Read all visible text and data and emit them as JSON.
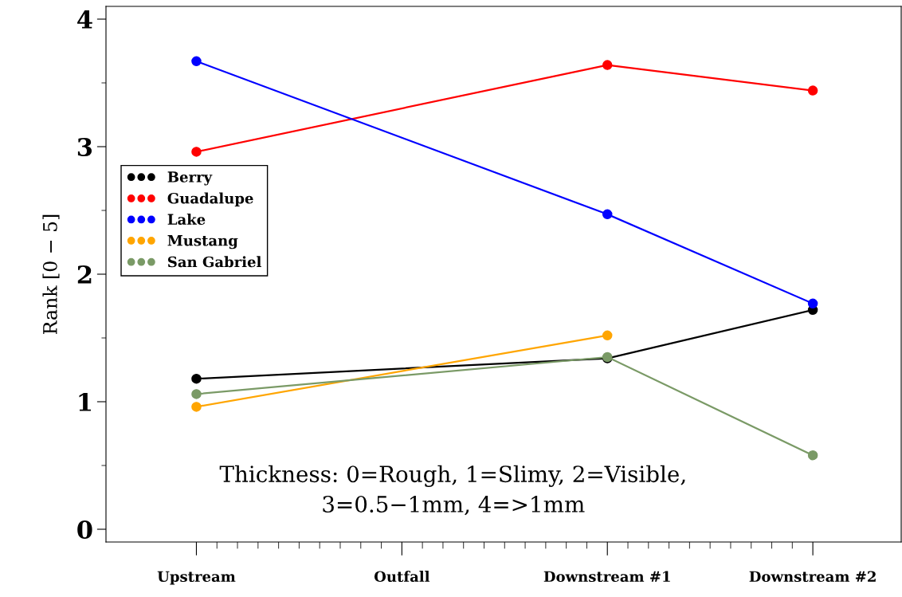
{
  "chart_data": {
    "type": "line",
    "ylabel": "Rank [0 − 5]",
    "categories": [
      "Upstream",
      "Outfall",
      "Downstream #1",
      "Downstream #2"
    ],
    "series": [
      {
        "name": "Berry",
        "color": "#000000",
        "values": [
          1.18,
          null,
          1.34,
          1.72
        ]
      },
      {
        "name": "Guadalupe",
        "color": "#ff0000",
        "values": [
          2.96,
          null,
          3.64,
          3.44
        ]
      },
      {
        "name": "Lake",
        "color": "#0000ff",
        "values": [
          3.67,
          null,
          2.47,
          1.77
        ]
      },
      {
        "name": "Mustang",
        "color": "#ffa500",
        "values": [
          0.96,
          null,
          1.52,
          null
        ]
      },
      {
        "name": "San Gabriel",
        "color": "#7a9a66",
        "values": [
          1.06,
          null,
          1.35,
          0.58
        ]
      }
    ],
    "ylim": [
      -0.1,
      4.1
    ],
    "yticks": [
      0,
      1,
      2,
      3,
      4
    ],
    "annotations": [
      "Thickness: 0=Rough, 1=Slimy, 2=Visible,\n3=0.5−1mm, 4=>1mm"
    ],
    "legend": "center left",
    "marker": "circle",
    "line_style": "solid",
    "grid": false
  }
}
